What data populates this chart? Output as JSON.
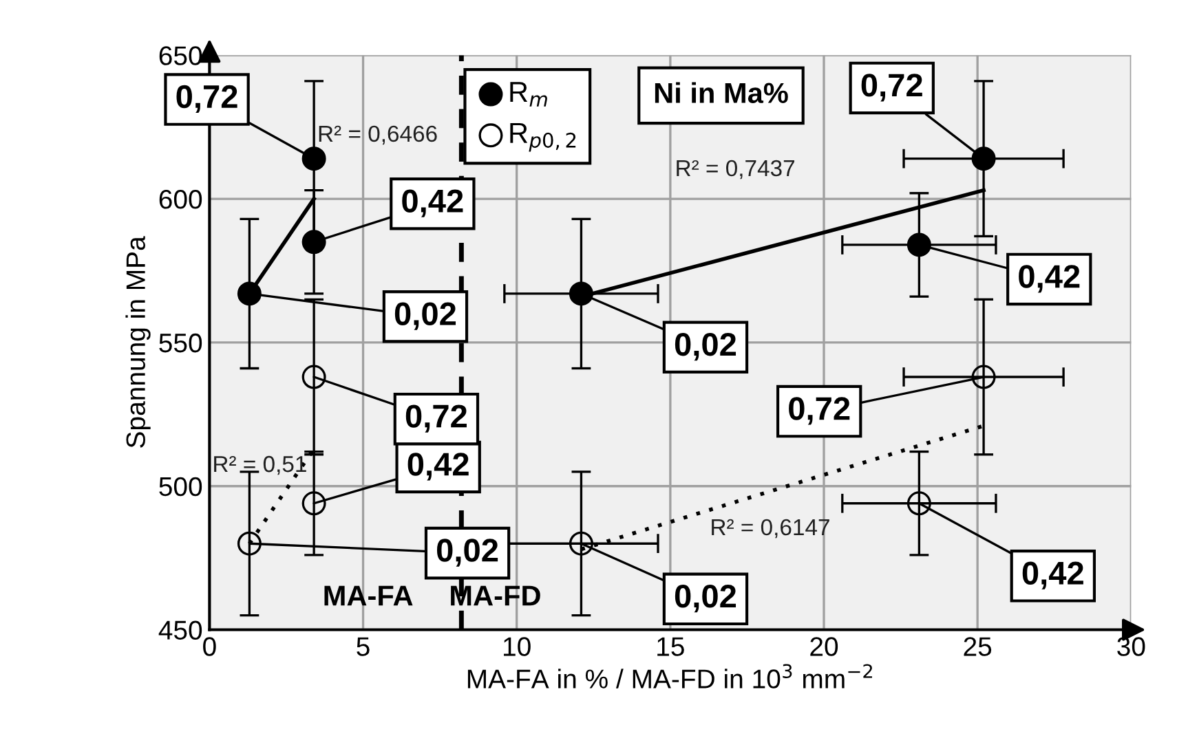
{
  "chart_data": {
    "type": "scatter",
    "xlabel": "MA-FA in % / MA-FD in 10$^{3}$ mm$^{−2}$",
    "ylabel": "Spannung in MPa",
    "xlim": [
      0,
      30
    ],
    "xticks": [
      0,
      5,
      10,
      15,
      20,
      25,
      30
    ],
    "ylim": [
      450,
      650
    ],
    "yticks": [
      450,
      500,
      550,
      600,
      650
    ],
    "grid": true,
    "legend": "top",
    "series": [
      {
        "name": "R$_{m}$",
        "marker": "circle",
        "color": "#000000",
        "x": [
          1.3,
          3.4,
          3.4,
          12.1,
          23.1,
          25.2
        ],
        "values": [
          567,
          585,
          614,
          567,
          584,
          614
        ],
        "errors": [
          26,
          18,
          27,
          26,
          18,
          27
        ],
        "xerrors": [
          null,
          null,
          null,
          2.5,
          2.5,
          2.6
        ]
      },
      {
        "name": "R$_{p0,2}$",
        "marker": "circle",
        "color": "#000000",
        "x": [
          1.3,
          3.4,
          3.4,
          12.1,
          23.1,
          25.2
        ],
        "values": [
          480,
          494,
          538,
          480,
          494,
          538
        ],
        "errors": [
          25,
          18,
          27,
          25,
          18,
          27
        ],
        "xerrors": [
          null,
          null,
          null,
          2.5,
          2.5,
          2.6
        ]
      },
      {
        "type": "line",
        "color": "#000000",
        "line_style": "solid",
        "x": [
          1.3,
          3.4
        ],
        "values": [
          567,
          600
        ]
      },
      {
        "type": "line",
        "color": "#000000",
        "line_style": "solid",
        "x": [
          12.1,
          25.2
        ],
        "values": [
          566,
          603
        ]
      },
      {
        "type": "line",
        "color": "#000000",
        "line_style": "dotted",
        "x": [
          1.3,
          3.4
        ],
        "values": [
          480,
          513
        ]
      },
      {
        "type": "line",
        "color": "#000000",
        "line_style": "dotted",
        "x": [
          12.1,
          25.2
        ],
        "values": [
          478,
          521
        ]
      }
    ],
    "ref_lines": [
      {
        "axis": "x",
        "value": 8.2,
        "color": "#000000",
        "line_style": "dashed"
      }
    ],
    "annotations": [
      {
        "text": "0,02",
        "x": 1.3,
        "y": 567
      },
      {
        "text": "0,42",
        "x": 3.4,
        "y": 585
      },
      {
        "text": "0,72",
        "x": 3.4,
        "y": 614
      },
      {
        "text": "0,02",
        "x": 12.1,
        "y": 567
      },
      {
        "text": "0,42",
        "x": 23.1,
        "y": 584
      },
      {
        "text": "0,72",
        "x": 25.2,
        "y": 614
      },
      {
        "text": "0,02",
        "x": 1.3,
        "y": 480
      },
      {
        "text": "0,42",
        "x": 3.4,
        "y": 494
      },
      {
        "text": "0,72",
        "x": 3.4,
        "y": 538
      },
      {
        "text": "0,02",
        "x": 12.1,
        "y": 480
      },
      {
        "text": "0,42",
        "x": 23.1,
        "y": 494
      },
      {
        "text": "0,72",
        "x": 25.2,
        "y": 538
      },
      "R² = 0,6466",
      "R² = 0,7437",
      "R² = 0,51",
      "R² = 0,6147",
      "MA-FA",
      "MA-FD",
      "Ni in Ma%"
    ]
  }
}
